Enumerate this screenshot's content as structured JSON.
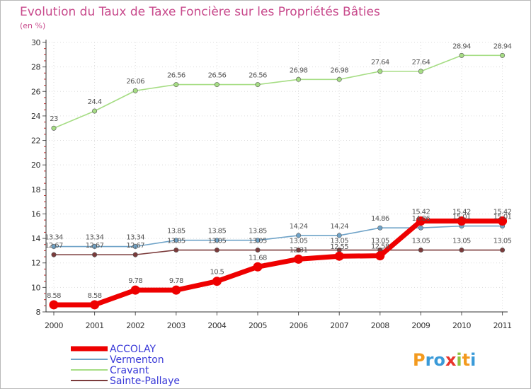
{
  "chart_data": {
    "type": "line",
    "title": "Evolution du Taux de Taxe Foncière sur les Propriétés Bâties",
    "subtitle": "(en %)",
    "xlabel": "",
    "ylabel": "",
    "x": [
      "2000",
      "2001",
      "2002",
      "2003",
      "2004",
      "2005",
      "2006",
      "2007",
      "2008",
      "2009",
      "2010",
      "2011"
    ],
    "ylim": [
      8,
      30
    ],
    "yticks": [
      8,
      10,
      12,
      14,
      16,
      18,
      20,
      22,
      24,
      26,
      28,
      30
    ],
    "grid": true,
    "legend_position": "bottom-left",
    "series": [
      {
        "name": "ACCOLAY",
        "color": "#ee0000",
        "values": [
          8.58,
          8.58,
          9.78,
          9.78,
          10.5,
          11.68,
          12.31,
          12.55,
          12.58,
          15.42,
          15.42,
          15.42
        ],
        "labels": [
          "8.58",
          "8.58",
          "9.78",
          "9.78",
          "10.5",
          "11.68",
          "12.31",
          "12.55",
          "12.58",
          "15.42",
          "15.42",
          "15.42"
        ]
      },
      {
        "name": "Vermenton",
        "color": "#6fa3c8",
        "values": [
          13.34,
          13.34,
          13.34,
          13.85,
          13.85,
          13.85,
          14.24,
          14.24,
          14.86,
          14.86,
          15.01,
          15.01
        ],
        "labels": [
          "13.34",
          "13.34",
          "13.34",
          "13.85",
          "13.85",
          "13.85",
          "14.24",
          "14.24",
          "14.86",
          "14.86",
          "15.01",
          "15.01"
        ]
      },
      {
        "name": "Cravant",
        "color": "#a6dd84",
        "values": [
          23,
          24.4,
          26.06,
          26.56,
          26.56,
          26.56,
          26.98,
          26.98,
          27.64,
          27.64,
          28.94,
          28.94
        ],
        "labels": [
          "23",
          "24.4",
          "26.06",
          "26.56",
          "26.56",
          "26.56",
          "26.98",
          "26.98",
          "27.64",
          "27.64",
          "28.94",
          "28.94"
        ]
      },
      {
        "name": "Sainte-Pallaye",
        "color": "#7b3b3b",
        "values": [
          12.67,
          12.67,
          12.67,
          13.05,
          13.05,
          13.05,
          13.05,
          13.05,
          13.05,
          13.05,
          13.05,
          13.05
        ],
        "labels": [
          "12.67",
          "12.67",
          "12.67",
          "13.05",
          "13.05",
          "13.05",
          "13.05",
          "13.05",
          "13.05",
          "13.05",
          "13.05",
          "13.05"
        ]
      }
    ]
  },
  "logo": {
    "text": "Proxiti"
  }
}
